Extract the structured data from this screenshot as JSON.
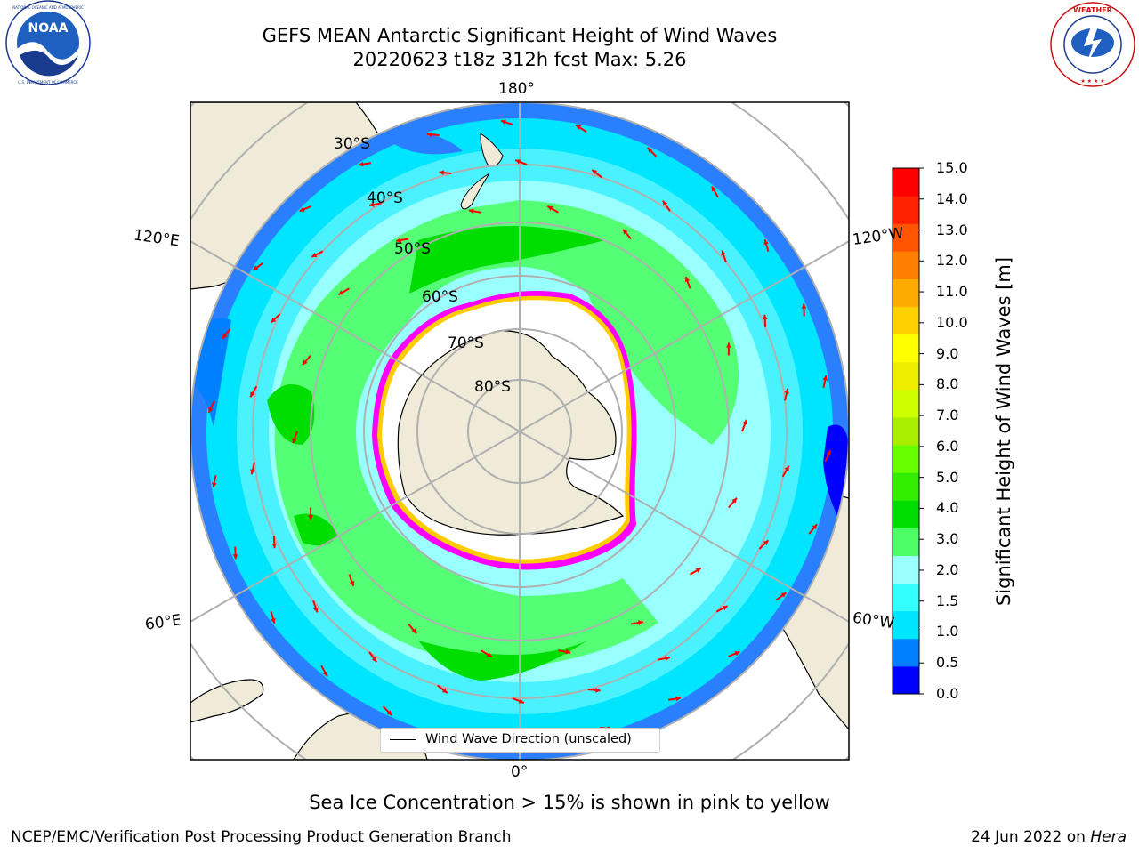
{
  "header": {
    "title_line1": "GEFS MEAN Antarctic Significant Height of Wind Waves",
    "title_line2": "20220623 t18z 312h fcst   Max: 5.26"
  },
  "logos": {
    "left": {
      "name": "NOAA",
      "ring_text": "NATIONAL OCEANIC AND ATMOSPHERIC ADMINISTRATION · U.S. DEPARTMENT OF COMMERCE"
    },
    "right": {
      "name": "NATIONAL WEATHER SERVICE"
    }
  },
  "map": {
    "projection": "south-polar-stereographic",
    "longitude_labels": [
      "180°",
      "120°E",
      "120°W",
      "60°E",
      "60°W",
      "0°"
    ],
    "latitude_labels": [
      "30°S",
      "40°S",
      "50°S",
      "60°S",
      "70°S",
      "80°S"
    ],
    "legend_label": "Wind Wave Direction (unscaled)",
    "arrow_color": "#ff0000",
    "ice_edge_colors": [
      "#ff00ff",
      "#ff8800",
      "#ffcc00"
    ],
    "land_color": "#efebd8",
    "ice_color": "#ffffff"
  },
  "colorbar": {
    "label": "Significant Height of Wind Waves [m]",
    "ticks": [
      "15.0",
      "14.0",
      "13.0",
      "12.0",
      "11.0",
      "10.0",
      "9.0",
      "8.0",
      "7.0",
      "6.0",
      "5.0",
      "4.0",
      "3.0",
      "2.0",
      "1.5",
      "1.0",
      "0.5",
      "0.0"
    ],
    "colors_bottom_to_top": [
      "#0000ff",
      "#0080ff",
      "#00e5ff",
      "#33ffff",
      "#99ffff",
      "#4dff66",
      "#00dd00",
      "#33ee00",
      "#66ff00",
      "#aaee00",
      "#ccff00",
      "#eeee00",
      "#ffff00",
      "#ffd000",
      "#ffaa00",
      "#ff8000",
      "#ff5500",
      "#ff2200",
      "#ff0000"
    ]
  },
  "caption": "Sea Ice Concentration > 15% is shown in pink to yellow",
  "footer": {
    "left": "NCEP/EMC/Verification Post Processing Product Generation Branch",
    "right_prefix": "24 Jun 2022 on ",
    "right_machine": "Hera"
  }
}
